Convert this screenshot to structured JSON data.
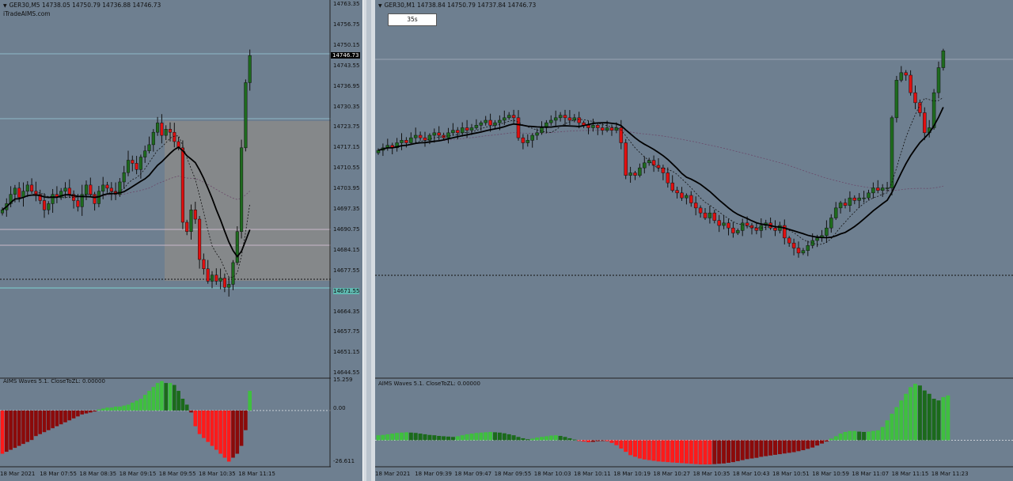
{
  "colors": {
    "background": "#6e7f90",
    "bull": "#1e6b1e",
    "bear": "#e01010",
    "osc_green_up": "#3fbf3f",
    "osc_green_down": "#1b6a1b",
    "osc_red_up": "#ff1a1a",
    "osc_red_down": "#8b0a0a",
    "ma_main": "#000000",
    "box": "#8a8a8a"
  },
  "left": {
    "title": "GER30,M5  14738.05 14750.79 14736.88 14746.73",
    "watermark": "iTradeAIMS.com",
    "current_price": "14746.73",
    "price_ticks": [
      "14763.35",
      "14756.75",
      "14750.15",
      "14743.55",
      "14736.95",
      "14730.35",
      "14723.75",
      "14717.15",
      "14710.55",
      "14703.95",
      "14697.35",
      "14690.75",
      "14684.15",
      "14677.55",
      "14671.55",
      "14664.35",
      "14657.75",
      "14651.15",
      "14644.55"
    ],
    "price_range": [
      14644.55,
      14763.35
    ],
    "oscillator": {
      "title": "AIMS Waves 5.1. CloseToZL: 0.00000",
      "ticks": [
        "15.259",
        "0.00",
        "-26.611"
      ],
      "range": [
        -26.611,
        15.259
      ],
      "values": [
        -22,
        -21,
        -20,
        -19,
        -18,
        -17,
        -16,
        -15,
        -13,
        -12,
        -11,
        -10,
        -9,
        -8,
        -7,
        -6,
        -5,
        -4,
        -3,
        -2,
        -1.5,
        -1,
        -0.5,
        0.5,
        1,
        1.5,
        1.5,
        2,
        2,
        2.5,
        3,
        4,
        5,
        6,
        8,
        10,
        12,
        14,
        15,
        14,
        14,
        13,
        10,
        6,
        3,
        -1,
        -8,
        -12,
        -14,
        -16,
        -18,
        -20,
        -22,
        -24,
        -26,
        -24,
        -22,
        -18,
        -10,
        10
      ]
    },
    "closes": [
      14697,
      14699,
      14702,
      14704,
      14701,
      14703,
      14705,
      14703,
      14702,
      14700,
      14697,
      14699,
      14702,
      14701,
      14703,
      14704,
      14702,
      14700,
      14698,
      14702,
      14705,
      14702,
      14699,
      14703,
      14705,
      14704,
      14703,
      14702,
      14706,
      14709,
      14713,
      14712,
      14710,
      14714,
      14716,
      14718,
      14722,
      14725,
      14721,
      14723,
      14722,
      14719,
      14717,
      14693,
      14690,
      14697,
      14694,
      14681,
      14678,
      14674,
      14676,
      14674,
      14675,
      14672,
      14673,
      14680,
      14690,
      14717,
      14738,
      14746.73
    ],
    "time_labels": [
      "18 Mar 2021",
      "18 Mar 07:55",
      "18 Mar 08:35",
      "18 Mar 09:15",
      "18 Mar 09:55",
      "18 Mar 10:35",
      "18 Mar 11:15"
    ]
  },
  "right": {
    "title": "GER30,M1  14738.84 14750.79 14737.84 14746.73",
    "timer": "35s",
    "price_range": [
      14617,
      14767
    ],
    "oscillator": {
      "title": "AIMS Waves 5.1. CloseToZL: 0.00000",
      "range": [
        -8,
        18
      ],
      "values": [
        1.5,
        1.6,
        1.8,
        2,
        2.2,
        2.3,
        2.4,
        2.3,
        2.2,
        2,
        1.8,
        1.6,
        1.5,
        1.3,
        1.2,
        1.1,
        1,
        1.2,
        1.5,
        1.8,
        2,
        2.2,
        2.3,
        2.4,
        2.5,
        2.4,
        2.3,
        2.1,
        1.8,
        1.5,
        1,
        0.6,
        0.3,
        0.5,
        0.8,
        1,
        1.2,
        1.4,
        1.5,
        1.3,
        1,
        0.6,
        0.2,
        -0.2,
        -0.4,
        -0.6,
        -0.5,
        -0.3,
        -0.2,
        -0.3,
        -0.8,
        -1.5,
        -2.5,
        -3.5,
        -4.5,
        -5,
        -5.5,
        -5.8,
        -6,
        -6.2,
        -6.4,
        -6.5,
        -6.6,
        -6.7,
        -6.8,
        -6.9,
        -7,
        -7.1,
        -7.2,
        -7.3,
        -7.3,
        -7.3,
        -7.2,
        -7.1,
        -7,
        -6.8,
        -6.6,
        -6.3,
        -6,
        -5.7,
        -5.5,
        -5.3,
        -5,
        -4.8,
        -4.6,
        -4.4,
        -4.2,
        -4,
        -3.8,
        -3.6,
        -3.3,
        -3,
        -2.6,
        -2.2,
        -1.6,
        -1,
        -0.4,
        0.5,
        1.2,
        2,
        2.5,
        2.8,
        2.8,
        2.6,
        2.5,
        2.6,
        2.8,
        3,
        4,
        6,
        8,
        10,
        12,
        14,
        16,
        17,
        16.5,
        15,
        14,
        12.5,
        12,
        13,
        13.5
      ]
    },
    "closes": [
      14707,
      14708,
      14709,
      14708,
      14710,
      14711,
      14710,
      14712,
      14713,
      14712,
      14711,
      14713,
      14714,
      14713,
      14712,
      14714,
      14715,
      14714,
      14716,
      14715,
      14716,
      14717,
      14718,
      14719,
      14717,
      14718,
      14719,
      14720,
      14721,
      14720,
      14712,
      14710,
      14711,
      14713,
      14714,
      14716,
      14718,
      14719,
      14720,
      14721,
      14720,
      14719,
      14720,
      14718,
      14717,
      14716,
      14717,
      14716,
      14715,
      14716,
      14715,
      14716,
      14710,
      14697,
      14698,
      14697,
      14700,
      14702,
      14703,
      14701,
      14700,
      14698,
      14694,
      14691,
      14690,
      14688,
      14689,
      14686,
      14684,
      14682,
      14680,
      14682,
      14679,
      14677,
      14678,
      14676,
      14674,
      14675,
      14678,
      14677,
      14676,
      14675,
      14677,
      14678,
      14676,
      14675,
      14677,
      14672,
      14670,
      14668,
      14666,
      14667,
      14669,
      14671,
      14672,
      14673,
      14676,
      14680,
      14684,
      14686,
      14685,
      14688,
      14687,
      14688,
      14688,
      14690,
      14692,
      14691,
      14692,
      14692,
      14720,
      14735,
      14738,
      14737,
      14730,
      14726,
      14722,
      14714,
      14716,
      14730,
      14740,
      14746.73
    ],
    "time_labels": [
      "18 Mar 2021",
      "18 Mar 09:39",
      "18 Mar 09:47",
      "18 Mar 09:55",
      "18 Mar 10:03",
      "18 Mar 10:11",
      "18 Mar 10:19",
      "18 Mar 10:27",
      "18 Mar 10:35",
      "18 Mar 10:43",
      "18 Mar 10:51",
      "18 Mar 10:59",
      "18 Mar 11:07",
      "18 Mar 11:15",
      "18 Mar 11:23"
    ]
  }
}
